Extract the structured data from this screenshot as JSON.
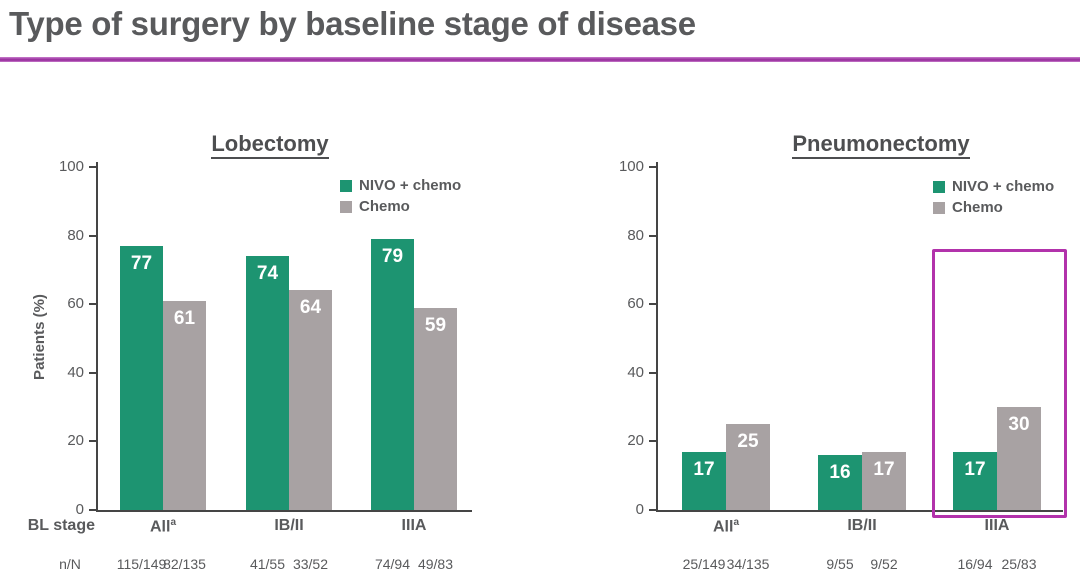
{
  "page": {
    "title": "Type of surgery by baseline stage of disease"
  },
  "colors": {
    "accent_rule": "#9c35a1",
    "nivo_green": "#1d9471",
    "chemo_gray": "#a8a2a3",
    "highlight_magenta": "#b232ab",
    "text_dark": "#595a5c",
    "axis": "#454545",
    "bar_value_text": "#ffffff"
  },
  "row_labels": {
    "bl_stage": "BL stage",
    "n_over_n": "n/N"
  },
  "chart_data": [
    {
      "type": "bar",
      "title": "Lobectomy",
      "ylabel": "Patients (%)",
      "ylim": [
        0,
        100
      ],
      "yticks": [
        0,
        20,
        40,
        60,
        80,
        100
      ],
      "categories": [
        "All",
        "IB/II",
        "IIIA"
      ],
      "category_sups": [
        "a",
        "",
        ""
      ],
      "legend_position": "top-right",
      "series": [
        {
          "name": "NIVO + chemo",
          "color_key": "nivo_green",
          "values": [
            77,
            74,
            79
          ],
          "n_over_N": [
            "115/149",
            "41/55",
            "74/94"
          ]
        },
        {
          "name": "Chemo",
          "color_key": "chemo_gray",
          "values": [
            61,
            64,
            59
          ],
          "n_over_N": [
            "82/135",
            "33/52",
            "49/83"
          ]
        }
      ]
    },
    {
      "type": "bar",
      "title": "Pneumonectomy",
      "ylabel": "",
      "ylim": [
        0,
        100
      ],
      "yticks": [
        0,
        20,
        40,
        60,
        80,
        100
      ],
      "categories": [
        "All",
        "IB/II",
        "IIIA"
      ],
      "category_sups": [
        "a",
        "",
        ""
      ],
      "legend_position": "top-right",
      "series": [
        {
          "name": "NIVO + chemo",
          "color_key": "nivo_green",
          "values": [
            17,
            16,
            17
          ],
          "n_over_N": [
            "25/149",
            "9/55",
            "16/94"
          ]
        },
        {
          "name": "Chemo",
          "color_key": "chemo_gray",
          "values": [
            25,
            17,
            30
          ],
          "n_over_N": [
            "34/135",
            "9/52",
            "25/83"
          ]
        }
      ],
      "highlight": {
        "category": "IIIA",
        "top_value": 76,
        "color_key": "highlight_magenta"
      }
    }
  ]
}
